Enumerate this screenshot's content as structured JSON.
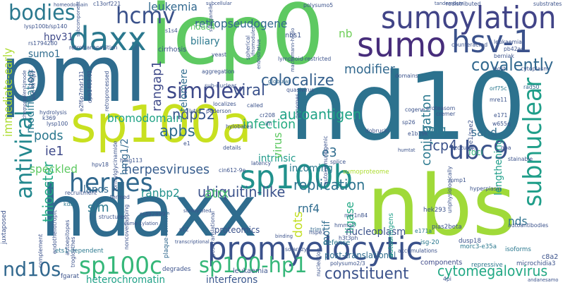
{
  "words": [
    {
      "text": "pml",
      "color": "#2f6c8e"
    },
    {
      "text": "icp0",
      "color": "#5ec962"
    },
    {
      "text": "nd10",
      "color": "#2c728e"
    },
    {
      "text": "hdaxx",
      "color": "#2f6c8e"
    },
    {
      "text": "nbs",
      "color": "#a0da39"
    },
    {
      "text": "sp100a",
      "color": "#c8e020"
    },
    {
      "text": "promyelocytic",
      "color": "#3b528b"
    },
    {
      "text": "sumoylation",
      "color": "#414487"
    },
    {
      "text": "daxx",
      "color": "#2a788e"
    },
    {
      "text": "sumo",
      "color": "#472d7b"
    },
    {
      "text": "hsv-1",
      "color": "#3b528b"
    },
    {
      "text": "hcmv",
      "color": "#3b528b"
    },
    {
      "text": "bodies",
      "color": "#2a788e"
    },
    {
      "text": "sp100b",
      "color": "#21918c"
    },
    {
      "text": "herpes",
      "color": "#31688e"
    },
    {
      "text": "simplex",
      "color": "#3e4989"
    },
    {
      "text": "antiviral",
      "color": "#23888e"
    },
    {
      "text": "subnuclear",
      "color": "#1f9e89"
    },
    {
      "text": "ubc9",
      "color": "#3b528b"
    },
    {
      "text": "sp100c",
      "color": "#35b779"
    },
    {
      "text": "sp100-hp1",
      "color": "#35b779"
    },
    {
      "text": "nd10s",
      "color": "#31688e"
    },
    {
      "text": "constituent",
      "color": "#3b528b"
    },
    {
      "text": "cytomegalovirus",
      "color": "#22a884"
    },
    {
      "text": "heterochromatin",
      "color": "#1fa187"
    },
    {
      "text": "interferons",
      "color": "#39568c"
    },
    {
      "text": "retropseudogene",
      "color": "#31688e"
    },
    {
      "text": "leukemia",
      "color": "#31688e"
    },
    {
      "text": "autoantigen",
      "color": "#20a386"
    },
    {
      "text": "colocalize",
      "color": "#35608d"
    },
    {
      "text": "covalently",
      "color": "#31688e"
    },
    {
      "text": "modifier",
      "color": "#31688e"
    },
    {
      "text": "conjugation",
      "color": "#2a788e"
    },
    {
      "text": "replication",
      "color": "#2c728e"
    },
    {
      "text": "ubiquitin-like",
      "color": "#3b528b"
    },
    {
      "text": "herpesviruses",
      "color": "#365c8d"
    },
    {
      "text": "bromodomain",
      "color": "#20a386"
    },
    {
      "text": "apbs",
      "color": "#2f6c8e"
    },
    {
      "text": "ndp52",
      "color": "#39568c"
    },
    {
      "text": "infection",
      "color": "#25ac82"
    },
    {
      "text": "viral",
      "color": "#3b528b"
    },
    {
      "text": "rangap1",
      "color": "#3e4989"
    },
    {
      "text": "telomere",
      "color": "#2f6c8e"
    },
    {
      "text": "immediate-early",
      "color": "#addc30"
    },
    {
      "text": "modification",
      "color": "#2a788e"
    },
    {
      "text": "thioester",
      "color": "#22a884"
    },
    {
      "text": "speckled",
      "color": "#5ec962"
    },
    {
      "text": "ie1",
      "color": "#3e4989"
    },
    {
      "text": "pods",
      "color": "#2a788e"
    },
    {
      "text": "icp4",
      "color": "#3b528b"
    },
    {
      "text": "e3",
      "color": "#2f6c8e"
    },
    {
      "text": "hmg",
      "color": "#2a788e"
    },
    {
      "text": "sand",
      "color": "#2f6c8e"
    },
    {
      "text": "sim",
      "color": "#2a788e"
    },
    {
      "text": "lands",
      "color": "#31688e"
    },
    {
      "text": "ranbp2",
      "color": "#21918c"
    },
    {
      "text": "atrx",
      "color": "#44bf70"
    },
    {
      "text": "rnf4",
      "color": "#2f6c8e"
    },
    {
      "text": "nds",
      "color": "#2c728e"
    },
    {
      "text": "ligase",
      "color": "#22a884"
    },
    {
      "text": "dots",
      "color": "#c2df23"
    },
    {
      "text": "motif",
      "color": "#2f6c8e"
    },
    {
      "text": "intrinsic",
      "color": "#1f9a8a"
    },
    {
      "text": "incoming",
      "color": "#2a788e"
    },
    {
      "text": "virus",
      "color": "#5ec962"
    },
    {
      "text": "lengthening",
      "color": "#1f9e89"
    },
    {
      "text": "nucleoplasm",
      "color": "#3b528b"
    },
    {
      "text": "post-translational",
      "color": "#2f6c8e"
    },
    {
      "text": "hpv31",
      "color": "#3e4989"
    },
    {
      "text": "sumo1",
      "color": "#2f6c8e"
    },
    {
      "text": "hdac4",
      "color": "#5ec962"
    },
    {
      "text": "biliary",
      "color": "#2a788e"
    },
    {
      "text": "cirrhosis",
      "color": "#3b528b"
    },
    {
      "text": "nb",
      "color": "#6ece58"
    },
    {
      "text": "nbs1",
      "color": "#3b528b"
    },
    {
      "text": "hmg1/2",
      "color": "#31688e"
    },
    {
      "text": "proteomics",
      "color": "#3b528b"
    },
    {
      "text": "defense",
      "color": "#2a788e"
    },
    {
      "text": "leukaemia",
      "color": "#3b528b"
    },
    {
      "text": "polysumo2/3",
      "color": "#3b528b"
    },
    {
      "text": "components",
      "color": "#3e4989"
    },
    {
      "text": "repressive",
      "color": "#2a788e"
    },
    {
      "text": "microchidia3",
      "color": "#3b528b"
    },
    {
      "text": "fgarat",
      "color": "#3b528b"
    },
    {
      "text": "juxtaposed",
      "color": "#3b528b"
    },
    {
      "text": "ets1-dependent",
      "color": "#2a788e"
    },
    {
      "text": "degrades",
      "color": "#3b528b"
    },
    {
      "text": "plaque-forming",
      "color": "#31688e"
    },
    {
      "text": "sumoproteome",
      "color": "#addc30"
    },
    {
      "text": "hek293",
      "color": "#3b528b"
    },
    {
      "text": "pias2beta",
      "color": "#3b528b"
    },
    {
      "text": "dusp18",
      "color": "#3b528b"
    },
    {
      "text": "morc3-e35a",
      "color": "#2a788e"
    },
    {
      "text": "isoforms",
      "color": "#2a788e"
    },
    {
      "text": "accumulations",
      "color": "#3b528b"
    },
    {
      "text": "c8a2",
      "color": "#3b528b"
    },
    {
      "text": "isg-20",
      "color": "#2a788e"
    },
    {
      "text": "autoantibodies",
      "color": "#3b528b"
    },
    {
      "text": "autoantigens",
      "color": "#1f9e89"
    },
    {
      "text": "e171a",
      "color": "#2a788e"
    },
    {
      "text": "mmp1",
      "color": "#3b528b"
    },
    {
      "text": "hyperplasia",
      "color": "#3b528b"
    },
    {
      "text": "foci",
      "color": "#35b779"
    },
    {
      "text": "rad50",
      "color": "#31688e"
    },
    {
      "text": "cytoplasm",
      "color": "#3b528b"
    },
    {
      "text": "orf75c",
      "color": "#2a788e"
    },
    {
      "text": "mre11",
      "color": "#3b528b"
    },
    {
      "text": "e171",
      "color": "#3b528b"
    },
    {
      "text": "w655q",
      "color": "#3b528b"
    },
    {
      "text": "cremer",
      "color": "#3b528b"
    },
    {
      "text": "proteasom",
      "color": "#3b528b"
    },
    {
      "text": "cogene",
      "color": "#3b528b"
    },
    {
      "text": "sp26",
      "color": "#3b528b"
    },
    {
      "text": "e1b19k",
      "color": "#3b528b"
    },
    {
      "text": "dobrucki",
      "color": "#3b528b"
    },
    {
      "text": "autoimmunogenic",
      "color": "#3b528b"
    },
    {
      "text": "splice",
      "color": "#3b528b"
    },
    {
      "text": "cin612-9e",
      "color": "#3b528b"
    },
    {
      "text": "trim",
      "color": "#31688e"
    },
    {
      "text": "e1",
      "color": "#3b528b"
    },
    {
      "text": "latency",
      "color": "#3b528b"
    },
    {
      "text": "ifn",
      "color": "#3b528b"
    },
    {
      "text": "cr208",
      "color": "#3b528b"
    },
    {
      "text": "sub-nuclear",
      "color": "#3b528b"
    },
    {
      "text": "globular",
      "color": "#31688e"
    },
    {
      "text": "aggregation",
      "color": "#3b528b"
    },
    {
      "text": "lytic",
      "color": "#3b528b"
    },
    {
      "text": "localizes",
      "color": "#3b528b"
    },
    {
      "text": "called",
      "color": "#3b528b"
    },
    {
      "text": "pederson",
      "color": "#3b528b"
    },
    {
      "text": "hylobates",
      "color": "#3b528b"
    },
    {
      "text": "details",
      "color": "#3b528b"
    },
    {
      "text": "hpv18",
      "color": "#3b528b"
    },
    {
      "text": "hmg113",
      "color": "#3b528b"
    },
    {
      "text": "kda",
      "color": "#2a788e"
    },
    {
      "text": "structures",
      "color": "#3b528b"
    },
    {
      "text": "recruitment",
      "color": "#3b528b"
    },
    {
      "text": "termed",
      "color": "#3b528b"
    },
    {
      "text": "lysp100",
      "color": "#3b528b"
    },
    {
      "text": "k369",
      "color": "#3b528b"
    },
    {
      "text": "hydrolysis",
      "color": "#3b528b"
    },
    {
      "text": "lysp100b/sp140",
      "color": "#3b528b"
    },
    {
      "text": "rs1794280",
      "color": "#3b528b"
    },
    {
      "text": "retrotransposition",
      "color": "#3b528b"
    },
    {
      "text": "c13orf221",
      "color": "#3b528b"
    },
    {
      "text": "redistributed",
      "color": "#3b528b"
    },
    {
      "text": "substrates",
      "color": "#3b528b"
    },
    {
      "text": "leukaemian",
      "color": "#3b528b"
    },
    {
      "text": "pb42ad",
      "color": "#3b528b"
    },
    {
      "text": "counteracted",
      "color": "#3b528b"
    },
    {
      "text": "berniak",
      "color": "#3b528b"
    },
    {
      "text": "lymphoid-restricted",
      "color": "#3b528b"
    },
    {
      "text": "polysumo5",
      "color": "#3b528b"
    },
    {
      "text": "domains",
      "color": "#3b528b"
    },
    {
      "text": "host",
      "color": "#3b528b"
    },
    {
      "text": "yeast",
      "color": "#3b528b"
    },
    {
      "text": "s1s4",
      "color": "#3b528b"
    },
    {
      "text": "rs492899",
      "color": "#3b528b"
    },
    {
      "text": "s12",
      "color": "#3b528b"
    },
    {
      "text": "solarczyk",
      "color": "#3b528b"
    },
    {
      "text": "h3t3ph",
      "color": "#3b528b"
    },
    {
      "text": "hmmg2",
      "color": "#3b528b"
    },
    {
      "text": "mrr1n84",
      "color": "#3b528b"
    },
    {
      "text": "quasivirus",
      "color": "#3b528b"
    },
    {
      "text": "unphysiologically",
      "color": "#3b528b"
    },
    {
      "text": "hspe1",
      "color": "#3b528b"
    },
    {
      "text": "4pi",
      "color": "#3b528b"
    },
    {
      "text": "andanesamo",
      "color": "#3b528b"
    },
    {
      "text": "stainable",
      "color": "#3b528b"
    },
    {
      "text": "gpa",
      "color": "#3b528b"
    },
    {
      "text": "szczurek",
      "color": "#3b528b"
    },
    {
      "text": "sae1/sae2",
      "color": "#3b528b"
    },
    {
      "text": "genomes",
      "color": "#3b528b"
    },
    {
      "text": "spherical",
      "color": "#3b528b"
    },
    {
      "text": "nucleation",
      "color": "#3b528b"
    },
    {
      "text": "posttranslational",
      "color": "#3b528b"
    },
    {
      "text": "noncoverlapping",
      "color": "#3b528b"
    },
    {
      "text": "trogloythes",
      "color": "#3b528b"
    },
    {
      "text": "autoepitopes",
      "color": "#3b528b"
    },
    {
      "text": "endotheliotropic",
      "color": "#3b528b"
    },
    {
      "text": "complement",
      "color": "#3b528b"
    },
    {
      "text": "formylglycinamide",
      "color": "#3b528b"
    },
    {
      "text": "retroprocessed",
      "color": "#3b528b"
    },
    {
      "text": "dpb1403:01",
      "color": "#3b528b"
    },
    {
      "text": "e2f6p7rhdr131",
      "color": "#3b528b"
    },
    {
      "text": "anti-hr-hpv",
      "color": "#3b528b"
    },
    {
      "text": "sz4test",
      "color": "#3b528b"
    },
    {
      "text": "chemoreplenitimode",
      "color": "#3b528b"
    },
    {
      "text": "subcomponent",
      "color": "#3b528b"
    },
    {
      "text": "machsmann-hogio",
      "color": "#3b528b"
    },
    {
      "text": "subcellular",
      "color": "#3b528b"
    },
    {
      "text": "subrganelle",
      "color": "#3b528b"
    },
    {
      "text": "ifnomodules",
      "color": "#3b528b"
    },
    {
      "text": "endostrative",
      "color": "#3b528b"
    },
    {
      "text": "homeodomain",
      "color": "#3b528b"
    },
    {
      "text": "humtat",
      "color": "#3b528b"
    },
    {
      "text": "tandemdom",
      "color": "#3b528b"
    },
    {
      "text": "sumo-1ylation",
      "color": "#3b528b"
    },
    {
      "text": "transcriptional",
      "color": "#3b528b"
    },
    {
      "text": "binding",
      "color": "#3b528b"
    },
    {
      "text": "sumoylated",
      "color": "#3b528b"
    }
  ]
}
